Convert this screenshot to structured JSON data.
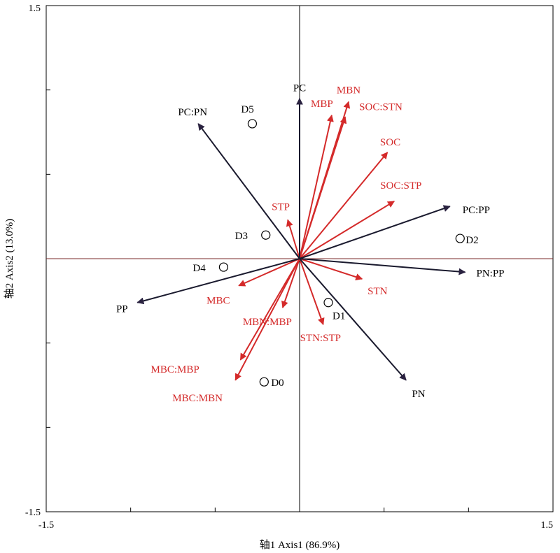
{
  "chart_data": {
    "type": "scatter",
    "subtype": "pca-biplot",
    "xlabel": "轴1 Axis1 (86.9%)",
    "ylabel": "轴2 Axis2 (13.0%)",
    "xlim": [
      -1.5,
      1.5
    ],
    "ylim": [
      -1.5,
      1.5
    ],
    "x_tick_labels": [
      "-1.5",
      "1.5"
    ],
    "y_tick_labels": [
      "1.5",
      "-1.5"
    ],
    "grid": false,
    "colors": {
      "plant_vectors": "#1a1a2e",
      "soil_vectors": "#d42a2a",
      "zero_line_h": "#7a2a2a",
      "zero_line_v": "#000000"
    },
    "plant_vectors": [
      {
        "name": "PC",
        "x": 0.0,
        "y": 0.95
      },
      {
        "name": "PC:PN",
        "x": -0.6,
        "y": 0.8
      },
      {
        "name": "PC:PP",
        "x": 0.89,
        "y": 0.31
      },
      {
        "name": "PN:PP",
        "x": 0.98,
        "y": -0.08
      },
      {
        "name": "PN",
        "x": 0.63,
        "y": -0.72
      },
      {
        "name": "PP",
        "x": -0.96,
        "y": -0.26
      }
    ],
    "soil_vectors": [
      {
        "name": "MBN",
        "x": 0.29,
        "y": 0.93
      },
      {
        "name": "MBP",
        "x": 0.19,
        "y": 0.85
      },
      {
        "name": "SOC:STN",
        "x": 0.27,
        "y": 0.84
      },
      {
        "name": "SOC",
        "x": 0.52,
        "y": 0.63
      },
      {
        "name": "SOC:STP",
        "x": 0.56,
        "y": 0.34
      },
      {
        "name": "STP",
        "x": -0.07,
        "y": 0.23
      },
      {
        "name": "STN",
        "x": 0.37,
        "y": -0.12
      },
      {
        "name": "MBC",
        "x": -0.36,
        "y": -0.16
      },
      {
        "name": "MBN:MBP",
        "x": -0.1,
        "y": -0.29
      },
      {
        "name": "STN:STP",
        "x": 0.14,
        "y": -0.39
      },
      {
        "name": "MBC:MBP",
        "x": -0.35,
        "y": -0.6
      },
      {
        "name": "MBC:MBN",
        "x": -0.38,
        "y": -0.72
      }
    ],
    "sites": [
      {
        "name": "D0",
        "x": -0.21,
        "y": -0.73
      },
      {
        "name": "D1",
        "x": 0.17,
        "y": -0.26
      },
      {
        "name": "D2",
        "x": 0.95,
        "y": 0.12
      },
      {
        "name": "D3",
        "x": -0.2,
        "y": 0.14
      },
      {
        "name": "D4",
        "x": -0.45,
        "y": -0.05
      },
      {
        "name": "D5",
        "x": -0.28,
        "y": 0.8
      }
    ]
  }
}
